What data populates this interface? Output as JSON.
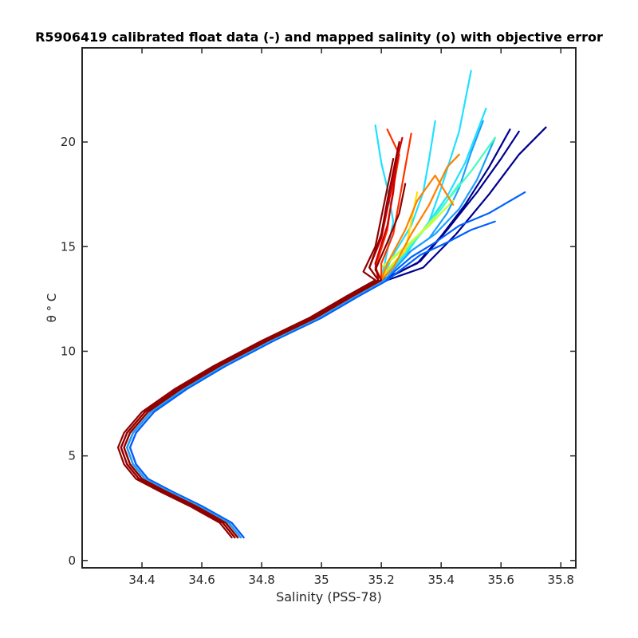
{
  "chart_data": {
    "type": "line",
    "title": "R5906419 calibrated float data (-) and mapped salinity (o) with objective error",
    "xlabel": "Salinity (PSS-78)",
    "ylabel": "θ ° C",
    "xlim": [
      34.2,
      35.85
    ],
    "ylim": [
      -0.35,
      24.5
    ],
    "x_ticks": [
      34.4,
      34.6,
      34.8,
      35,
      35.2,
      35.4,
      35.6,
      35.8
    ],
    "y_ticks": [
      0,
      5,
      10,
      15,
      20
    ],
    "x_tick_labels": [
      "34.4",
      "34.6",
      "34.8",
      "35",
      "35.2",
      "35.4",
      "35.6",
      "35.8"
    ],
    "y_tick_labels": [
      "0",
      "5",
      "10",
      "15",
      "20"
    ],
    "grid": false,
    "legend": "none",
    "colormap": "jet",
    "colors": {
      "dark_blue": "#00008f",
      "blue": "#0060ff",
      "light_blue": "#1aa0ff",
      "cyan": "#20e0ff",
      "aqua_green": "#40ffc0",
      "yellow_green": "#c0ff40",
      "yellow": "#ffe000",
      "orange": "#ff8000",
      "red_orange": "#ff3000",
      "red": "#d00000",
      "dark_red": "#8f0000"
    },
    "series_template": {
      "deep_path": [
        [
          34.72,
          1.1
        ],
        [
          34.68,
          1.8
        ],
        [
          34.58,
          2.6
        ],
        [
          34.48,
          3.3
        ],
        [
          34.4,
          3.9
        ],
        [
          34.36,
          4.6
        ],
        [
          34.34,
          5.4
        ],
        [
          34.36,
          6.1
        ],
        [
          34.42,
          7.1
        ],
        [
          34.53,
          8.2
        ],
        [
          34.66,
          9.3
        ],
        [
          34.82,
          10.5
        ],
        [
          34.98,
          11.6
        ],
        [
          35.1,
          12.6
        ],
        [
          35.2,
          13.4
        ]
      ]
    },
    "series": [
      {
        "color_index": 0,
        "salinity_offset": 0.0,
        "surface": [
          [
            35.32,
            14.2
          ],
          [
            35.4,
            15.5
          ],
          [
            35.48,
            17.0
          ],
          [
            35.56,
            18.8
          ],
          [
            35.63,
            20.6
          ]
        ]
      },
      {
        "color_index": 0,
        "salinity_offset": 0.01,
        "surface": [
          [
            35.33,
            14.3
          ],
          [
            35.42,
            15.8
          ],
          [
            35.52,
            17.6
          ],
          [
            35.6,
            19.2
          ],
          [
            35.66,
            20.5
          ]
        ]
      },
      {
        "color_index": 0,
        "salinity_offset": 0.02,
        "surface": [
          [
            35.34,
            14.0
          ],
          [
            35.45,
            15.6
          ],
          [
            35.56,
            17.5
          ],
          [
            35.66,
            19.4
          ],
          [
            35.75,
            20.7
          ]
        ]
      },
      {
        "color_index": 1,
        "salinity_offset": 0.01,
        "surface": [
          [
            35.3,
            14.5
          ],
          [
            35.38,
            15.2
          ],
          [
            35.46,
            16.0
          ],
          [
            35.56,
            16.6
          ],
          [
            35.68,
            17.6
          ]
        ]
      },
      {
        "color_index": 1,
        "salinity_offset": 0.02,
        "surface": [
          [
            35.33,
            14.6
          ],
          [
            35.42,
            15.2
          ],
          [
            35.5,
            15.8
          ],
          [
            35.58,
            16.2
          ]
        ]
      },
      {
        "color_index": 2,
        "salinity_offset": 0.0,
        "surface": [
          [
            35.28,
            14.6
          ],
          [
            35.36,
            15.4
          ],
          [
            35.42,
            16.6
          ],
          [
            35.46,
            17.8
          ],
          [
            35.5,
            19.5
          ],
          [
            35.54,
            21.0
          ]
        ]
      },
      {
        "color_index": 2,
        "salinity_offset": 0.01,
        "surface": [
          [
            35.3,
            14.8
          ],
          [
            35.38,
            15.6
          ],
          [
            35.46,
            16.8
          ],
          [
            35.52,
            18.2
          ],
          [
            35.58,
            20.2
          ]
        ]
      },
      {
        "color_index": 3,
        "salinity_offset": 0.0,
        "surface": [
          [
            35.24,
            14.6
          ],
          [
            35.3,
            16.0
          ],
          [
            35.34,
            17.6
          ],
          [
            35.36,
            19.2
          ],
          [
            35.38,
            21.0
          ]
        ]
      },
      {
        "color_index": 3,
        "salinity_offset": 0.0,
        "surface": [
          [
            35.26,
            14.4
          ],
          [
            35.34,
            15.8
          ],
          [
            35.42,
            17.4
          ],
          [
            35.48,
            19.0
          ],
          [
            35.55,
            21.6
          ]
        ]
      },
      {
        "color_index": 3,
        "salinity_offset": 0.0,
        "surface": [
          [
            35.28,
            14.6
          ],
          [
            35.36,
            16.2
          ],
          [
            35.4,
            17.8
          ],
          [
            35.46,
            20.5
          ],
          [
            35.5,
            23.4
          ]
        ]
      },
      {
        "color_index": 3,
        "salinity_offset": 0.0,
        "surface": [
          [
            35.22,
            14.8
          ],
          [
            35.24,
            16.2
          ],
          [
            35.22,
            17.8
          ],
          [
            35.2,
            19.0
          ],
          [
            35.18,
            20.8
          ]
        ]
      },
      {
        "color_index": 4,
        "salinity_offset": 0.0,
        "surface": [
          [
            35.26,
            14.4
          ],
          [
            35.34,
            15.8
          ],
          [
            35.42,
            17.2
          ],
          [
            35.5,
            18.6
          ],
          [
            35.58,
            20.2
          ]
        ]
      },
      {
        "color_index": 4,
        "salinity_offset": 0.0,
        "surface": [
          [
            35.24,
            14.2
          ],
          [
            35.32,
            15.4
          ],
          [
            35.4,
            16.8
          ],
          [
            35.46,
            18.0
          ]
        ]
      },
      {
        "color_index": 5,
        "salinity_offset": 0.0,
        "surface": [
          [
            35.2,
            14.0
          ],
          [
            35.28,
            15.0
          ],
          [
            35.36,
            16.0
          ],
          [
            35.44,
            17.2
          ]
        ]
      },
      {
        "color_index": 5,
        "salinity_offset": 0.0,
        "surface": [
          [
            35.22,
            14.2
          ],
          [
            35.3,
            15.2
          ],
          [
            35.38,
            16.4
          ]
        ]
      },
      {
        "color_index": 6,
        "salinity_offset": 0.0,
        "surface": [
          [
            35.22,
            13.9
          ],
          [
            35.28,
            14.8
          ],
          [
            35.3,
            16.2
          ],
          [
            35.32,
            17.6
          ]
        ]
      },
      {
        "color_index": 7,
        "salinity_offset": 0.0,
        "surface": [
          [
            35.24,
            14.0
          ],
          [
            35.3,
            15.6
          ],
          [
            35.36,
            17.0
          ],
          [
            35.42,
            18.8
          ],
          [
            35.46,
            19.4
          ]
        ]
      },
      {
        "color_index": 7,
        "salinity_offset": 0.0,
        "surface": [
          [
            35.22,
            14.2
          ],
          [
            35.28,
            15.8
          ],
          [
            35.32,
            17.2
          ],
          [
            35.38,
            18.4
          ],
          [
            35.44,
            17.0
          ]
        ]
      },
      {
        "color_index": 8,
        "salinity_offset": 0.0,
        "surface": [
          [
            35.2,
            14.2
          ],
          [
            35.24,
            15.6
          ],
          [
            35.26,
            17.2
          ],
          [
            35.28,
            18.8
          ],
          [
            35.3,
            20.4
          ]
        ]
      },
      {
        "color_index": 8,
        "salinity_offset": 0.0,
        "surface": [
          [
            35.18,
            14.0
          ],
          [
            35.22,
            15.8
          ],
          [
            35.24,
            17.8
          ],
          [
            35.26,
            19.4
          ],
          [
            35.22,
            20.6
          ]
        ]
      },
      {
        "color_index": 9,
        "salinity_offset": -0.01,
        "surface": [
          [
            35.16,
            14.0
          ],
          [
            35.2,
            15.4
          ],
          [
            35.22,
            16.8
          ],
          [
            35.24,
            18.2
          ],
          [
            35.26,
            19.6
          ]
        ]
      },
      {
        "color_index": 9,
        "salinity_offset": -0.01,
        "surface": [
          [
            35.18,
            14.2
          ],
          [
            35.22,
            16.0
          ],
          [
            35.24,
            17.6
          ],
          [
            35.25,
            19.0
          ],
          [
            35.27,
            20.2
          ]
        ]
      },
      {
        "color_index": 10,
        "salinity_offset": -0.02,
        "surface": [
          [
            35.14,
            13.8
          ],
          [
            35.18,
            15.0
          ],
          [
            35.2,
            16.4
          ],
          [
            35.22,
            17.8
          ],
          [
            35.24,
            19.2
          ]
        ]
      },
      {
        "color_index": 10,
        "salinity_offset": -0.01,
        "surface": [
          [
            35.16,
            14.0
          ],
          [
            35.2,
            15.6
          ],
          [
            35.22,
            17.2
          ],
          [
            35.24,
            18.6
          ],
          [
            35.26,
            20.0
          ]
        ]
      },
      {
        "color_index": 10,
        "salinity_offset": 0.0,
        "surface": [
          [
            35.18,
            13.9
          ],
          [
            35.22,
            15.2
          ],
          [
            35.26,
            16.6
          ],
          [
            35.28,
            18.0
          ]
        ]
      }
    ]
  }
}
